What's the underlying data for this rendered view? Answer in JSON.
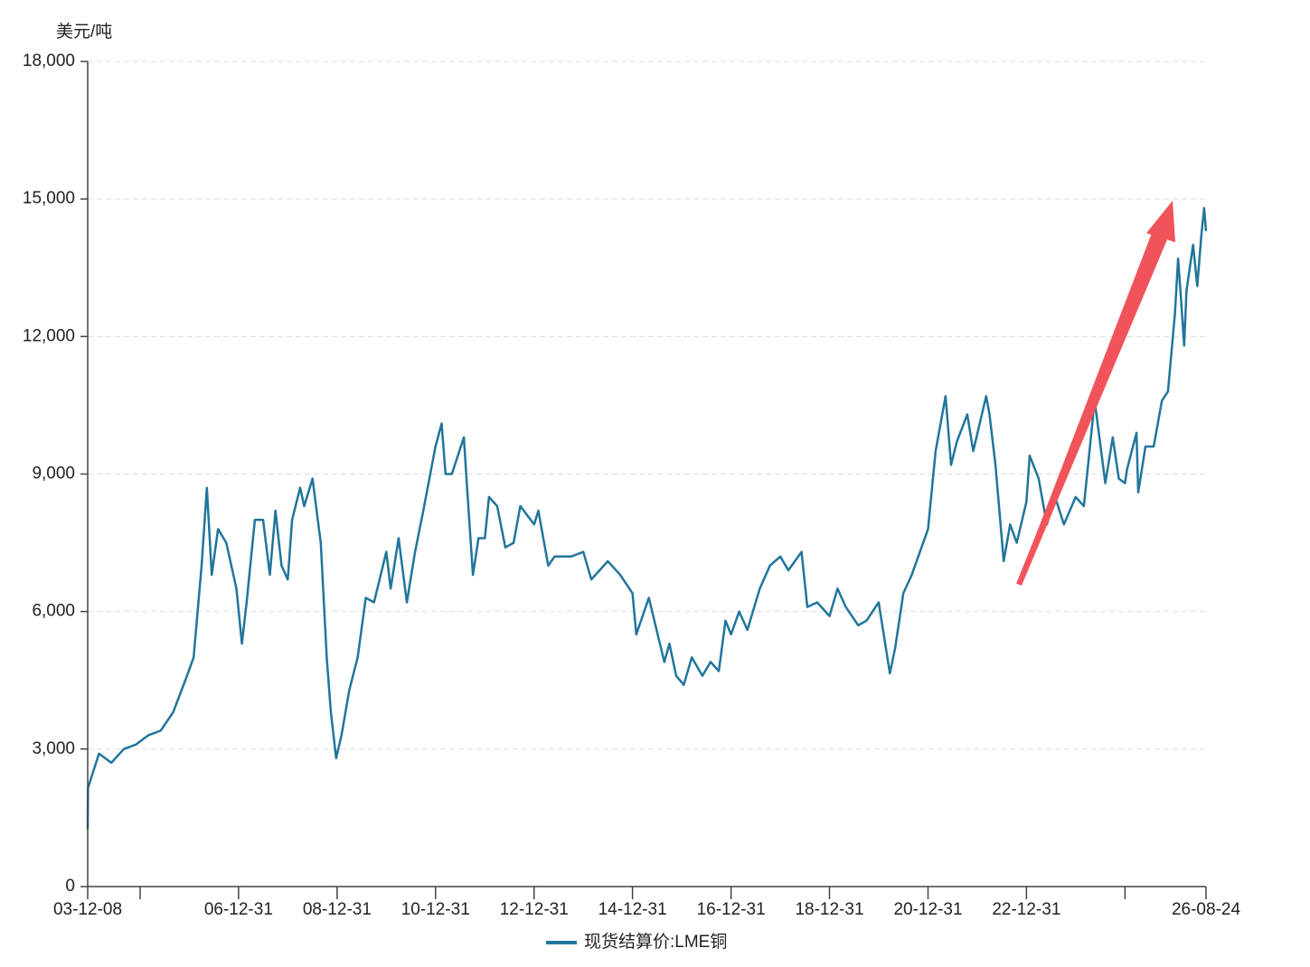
{
  "chart_data": {
    "type": "line",
    "y_axis_label": "美元/吨",
    "x": [
      "03-12-08",
      "03-12-10",
      "04-03-01",
      "04-06-01",
      "04-09-01",
      "04-12-01",
      "05-03-01",
      "05-06-01",
      "05-09-01",
      "05-12-01",
      "06-02-01",
      "06-04-01",
      "06-05-10",
      "06-06-15",
      "06-08-01",
      "06-10-01",
      "06-12-15",
      "07-01-25",
      "07-03-01",
      "07-05-01",
      "07-07-01",
      "07-08-20",
      "07-10-01",
      "07-11-15",
      "07-12-31",
      "08-02-01",
      "08-04-01",
      "08-05-01",
      "08-07-02",
      "08-09-01",
      "08-10-15",
      "08-11-15",
      "08-12-24",
      "09-02-01",
      "09-04-01",
      "09-06-01",
      "09-08-01",
      "09-10-01",
      "09-12-31",
      "10-02-01",
      "10-04-01",
      "10-06-01",
      "10-08-01",
      "10-10-01",
      "10-12-31",
      "11-02-14",
      "11-03-15",
      "11-05-01",
      "11-07-29",
      "11-08-20",
      "11-10-04",
      "11-11-15",
      "12-01-01",
      "12-02-01",
      "12-04-01",
      "12-06-01",
      "12-08-01",
      "12-09-20",
      "12-12-31",
      "13-02-01",
      "13-04-15",
      "13-06-01",
      "13-08-01",
      "13-10-01",
      "13-12-31",
      "14-03-01",
      "14-07-01",
      "14-10-01",
      "14-12-31",
      "15-01-28",
      "15-05-01",
      "15-08-24",
      "15-10-01",
      "15-11-20",
      "16-01-15",
      "16-03-15",
      "16-06-01",
      "16-08-01",
      "16-10-01",
      "16-11-20",
      "16-12-31",
      "17-03-01",
      "17-05-01",
      "17-08-01",
      "17-10-15",
      "17-12-31",
      "18-03-01",
      "18-06-07",
      "18-07-20",
      "18-10-01",
      "18-12-31",
      "19-03-01",
      "19-05-01",
      "19-08-01",
      "19-10-01",
      "19-12-31",
      "20-02-01",
      "20-03-23",
      "20-05-01",
      "20-07-01",
      "20-09-01",
      "20-12-31",
      "21-02-25",
      "21-05-10",
      "21-06-20",
      "21-08-01",
      "21-10-18",
      "21-12-01",
      "22-03-07",
      "22-04-01",
      "22-05-15",
      "22-07-15",
      "22-09-01",
      "22-10-20",
      "22-12-31",
      "23-01-24",
      "23-04-01",
      "23-05-31",
      "23-08-01",
      "23-10-05",
      "23-12-31",
      "24-03-01",
      "24-05-20",
      "24-08-07",
      "24-10-01",
      "24-11-15",
      "24-12-31",
      "25-01-15",
      "25-03-26",
      "25-04-08",
      "25-06-01",
      "25-08-01",
      "25-10-01",
      "25-11-15",
      "26-01-05",
      "26-01-29",
      "26-02-20",
      "26-03-15",
      "26-04-01",
      "26-05-20",
      "26-06-20",
      "26-07-20",
      "26-08-10",
      "26-08-24"
    ],
    "series": [
      {
        "name": "现货结算价:LME铜",
        "color": "#21759b",
        "values": [
          1250,
          2150,
          2900,
          2700,
          3000,
          3100,
          3300,
          3400,
          3800,
          4500,
          5000,
          7000,
          8700,
          6800,
          7800,
          7500,
          6500,
          5300,
          6200,
          8000,
          8000,
          6800,
          8200,
          7000,
          6700,
          8000,
          8700,
          8300,
          8900,
          7500,
          5000,
          3800,
          2800,
          3300,
          4300,
          5000,
          6300,
          6200,
          7300,
          6500,
          7600,
          6200,
          7300,
          8200,
          9600,
          10100,
          9000,
          9000,
          9800,
          8800,
          6800,
          7600,
          7600,
          8500,
          8300,
          7400,
          7500,
          8300,
          7900,
          8200,
          7000,
          7200,
          7200,
          7200,
          7300,
          6700,
          7100,
          6800,
          6400,
          5500,
          6300,
          4900,
          5300,
          4600,
          4400,
          5000,
          4600,
          4900,
          4700,
          5800,
          5500,
          6000,
          5600,
          6500,
          7000,
          7200,
          6900,
          7300,
          6100,
          6200,
          5900,
          6500,
          6100,
          5700,
          5800,
          6200,
          5600,
          4650,
          5200,
          6400,
          6800,
          7800,
          9500,
          10700,
          9200,
          9700,
          10300,
          9500,
          10700,
          10300,
          9200,
          7100,
          7900,
          7500,
          8400,
          9400,
          8900,
          7900,
          8500,
          7900,
          8500,
          8300,
          10600,
          8800,
          9800,
          8900,
          8800,
          9100,
          9900,
          8600,
          9600,
          9600,
          10600,
          10800,
          12500,
          13700,
          12800,
          11800,
          13000,
          14000,
          13100,
          14200,
          14800,
          14300
        ]
      }
    ],
    "xlim": [
      "03-12-08",
      "26-08-24"
    ],
    "xticks": [
      "03-12-08",
      {
        "value": "04-12-31",
        "label": null
      },
      "06-12-31",
      "08-12-31",
      "10-12-31",
      "12-12-31",
      "14-12-31",
      "16-12-31",
      "18-12-31",
      "20-12-31",
      "22-12-31",
      {
        "value": "24-12-31",
        "label": null
      },
      "26-08-24"
    ],
    "ylim": [
      0,
      18000
    ],
    "yticks": [
      0,
      {
        "value": 3000,
        "label": "3,000"
      },
      {
        "value": 6000,
        "label": "6,000"
      },
      {
        "value": 9000,
        "label": "9,000"
      },
      {
        "value": 12000,
        "label": "12,000"
      },
      {
        "value": 15000,
        "label": "15,000"
      },
      {
        "value": 18000,
        "label": "18,000"
      }
    ],
    "grid": true
  }
}
